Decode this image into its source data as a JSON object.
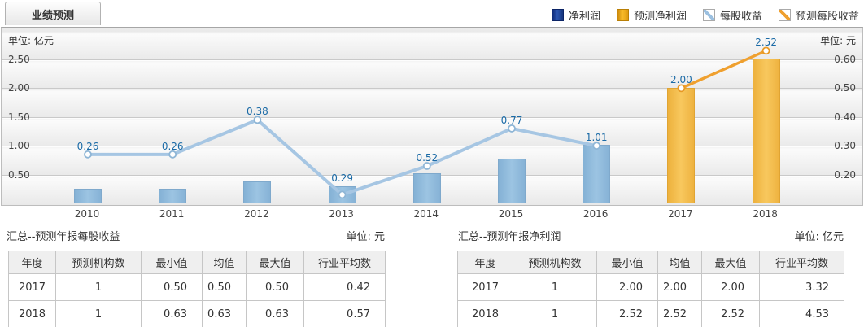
{
  "tab": {
    "label": "业绩预测"
  },
  "legend": [
    {
      "label": "净利润",
      "swatch": "square-blue"
    },
    {
      "label": "预测净利润",
      "swatch": "square-gold"
    },
    {
      "label": "每股收益",
      "swatch": "line-blue"
    },
    {
      "label": "预测每股收益",
      "swatch": "line-gold"
    }
  ],
  "chart_data": {
    "type": "bar",
    "subtype": "dual-axis bar + line combo",
    "categories": [
      "2010",
      "2011",
      "2012",
      "2013",
      "2014",
      "2015",
      "2016",
      "2017",
      "2018"
    ],
    "left_axis": {
      "unit_label": "单位: 亿元",
      "ticks": [
        0.5,
        1.0,
        1.5,
        2.0,
        2.5
      ],
      "min": 0,
      "max": 2.65,
      "tick_step": 0.5
    },
    "right_axis": {
      "unit_label": "单位: 元",
      "ticks": [
        0.2,
        0.3,
        0.4,
        0.5,
        0.6
      ],
      "min": 0.1,
      "max": 0.64,
      "tick_step": 0.1
    },
    "grid": true,
    "legend_position": "top-right",
    "series": [
      {
        "name": "净利润",
        "type": "bar",
        "axis": "left",
        "color": "blue",
        "values": [
          0.26,
          0.26,
          0.38,
          0.29,
          0.52,
          0.77,
          1.01,
          null,
          null
        ],
        "labeled": true
      },
      {
        "name": "预测净利润",
        "type": "bar",
        "axis": "left",
        "color": "gold",
        "values": [
          null,
          null,
          null,
          null,
          null,
          null,
          null,
          2.0,
          2.52
        ],
        "labeled": true
      },
      {
        "name": "每股收益",
        "type": "line",
        "axis": "right",
        "color": "blue",
        "estimated_from_pixels": true,
        "values": [
          0.27,
          0.27,
          0.39,
          0.13,
          0.23,
          0.36,
          0.3,
          null,
          null
        ],
        "labeled": false
      },
      {
        "name": "预测每股收益",
        "type": "line",
        "axis": "right",
        "color": "gold",
        "values": [
          null,
          null,
          null,
          null,
          null,
          null,
          null,
          0.5,
          0.63
        ],
        "labeled": false
      }
    ],
    "colors": {
      "bar_blue": "#8fbadc",
      "bar_gold": "#f3bc4e",
      "line_blue": "#a6c6e3",
      "line_gold": "#efa02f",
      "value_label": "#1a6aa6"
    }
  },
  "tables": [
    {
      "title": "汇总--预测年报每股收益",
      "unit": "单位: 元",
      "headers": [
        "年度",
        "预测机构数",
        "最小值",
        "均值",
        "最大值",
        "行业平均数"
      ],
      "rows": [
        [
          "2017",
          "1",
          "0.50",
          "0.50",
          "0.50",
          "0.42"
        ],
        [
          "2018",
          "1",
          "0.63",
          "0.63",
          "0.63",
          "0.57"
        ]
      ]
    },
    {
      "title": "汇总--预测年报净利润",
      "unit": "单位: 亿元",
      "headers": [
        "年度",
        "预测机构数",
        "最小值",
        "均值",
        "最大值",
        "行业平均数"
      ],
      "rows": [
        [
          "2017",
          "1",
          "2.00",
          "2.00",
          "2.00",
          "3.32"
        ],
        [
          "2018",
          "1",
          "2.52",
          "2.52",
          "2.52",
          "4.53"
        ]
      ]
    }
  ]
}
